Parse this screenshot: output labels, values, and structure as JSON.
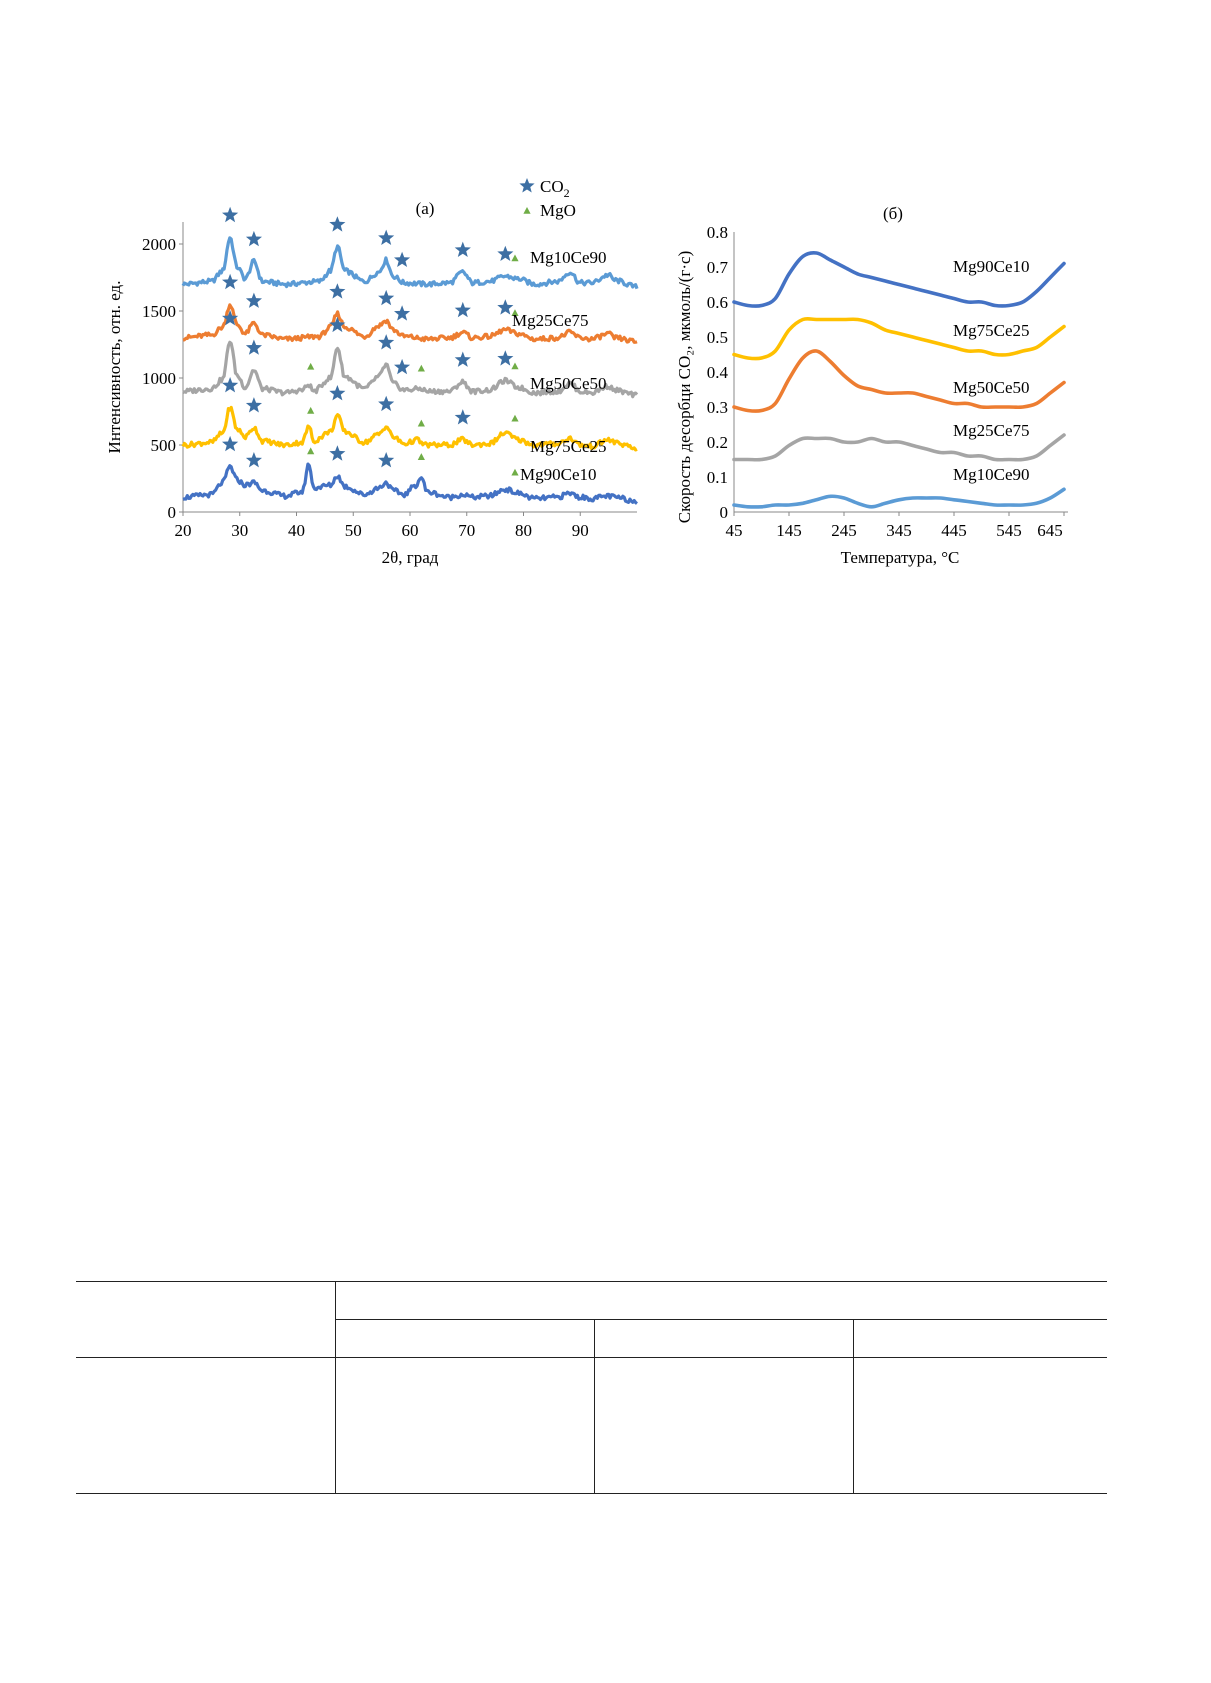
{
  "chart_data": [
    {
      "panel_label": "(a)",
      "type": "line",
      "xlabel": "2θ, град",
      "ylabel": "Интенсивность, отн. ед.",
      "xlim": [
        20,
        100
      ],
      "ylim": [
        0,
        2200
      ],
      "xticks": [
        "20",
        "30",
        "40",
        "50",
        "60",
        "70",
        "80",
        "90"
      ],
      "yticks": [
        "0",
        "500",
        "1000",
        "1500",
        "2000"
      ],
      "grid": false,
      "legend": {
        "position": "top-right",
        "entries": [
          {
            "symbol": "star",
            "label": "CO",
            "subscript": "2"
          },
          {
            "symbol": "triangle",
            "label": "MgO"
          }
        ]
      },
      "series": [
        {
          "name": "Mg10Ce90",
          "color": "#5b9bd5",
          "baseline": 1700,
          "x": [
            20,
            25,
            27,
            28.3,
            29.5,
            31,
            32.5,
            34,
            38,
            44,
            46,
            47.2,
            48.5,
            52,
            54.5,
            55.8,
            57,
            59,
            63,
            67,
            69.3,
            71,
            74,
            76.8,
            79,
            82,
            86,
            88.2,
            90,
            92,
            95,
            96,
            100
          ],
          "y": [
            1700,
            1720,
            1800,
            2050,
            1830,
            1740,
            1870,
            1720,
            1700,
            1720,
            1800,
            1980,
            1800,
            1720,
            1790,
            1880,
            1760,
            1710,
            1700,
            1710,
            1790,
            1710,
            1720,
            1760,
            1740,
            1700,
            1720,
            1790,
            1710,
            1710,
            1770,
            1730,
            1680
          ]
        },
        {
          "name": "Mg25Ce75",
          "color": "#ed7d31",
          "baseline": 1300,
          "x": [
            20,
            25,
            27,
            28.3,
            29.5,
            31,
            32.5,
            34,
            38,
            44,
            46,
            47.2,
            48.5,
            52,
            54.5,
            55.8,
            57,
            59,
            63,
            67,
            69.3,
            71,
            74,
            76.8,
            79,
            82,
            86,
            88.2,
            90,
            92,
            95,
            96,
            100
          ],
          "y": [
            1300,
            1320,
            1380,
            1550,
            1400,
            1330,
            1410,
            1320,
            1290,
            1310,
            1380,
            1480,
            1380,
            1310,
            1390,
            1430,
            1360,
            1310,
            1290,
            1300,
            1340,
            1300,
            1310,
            1360,
            1330,
            1290,
            1300,
            1340,
            1300,
            1290,
            1330,
            1300,
            1270
          ]
        },
        {
          "name": "Mg50Ce50",
          "color": "#a5a5a5",
          "baseline": 900,
          "x": [
            20,
            25,
            27,
            28.3,
            29.5,
            31,
            32.5,
            34,
            38,
            41,
            42.2,
            43,
            46,
            47.2,
            48.5,
            52,
            54.5,
            55.8,
            57,
            59,
            62,
            63,
            67,
            69.3,
            71,
            74,
            76.8,
            79,
            82,
            86,
            88.2,
            90,
            92,
            95,
            96,
            100
          ],
          "y": [
            900,
            920,
            990,
            1280,
            1020,
            930,
            1060,
            920,
            890,
            910,
            950,
            900,
            1000,
            1230,
            1010,
            920,
            1010,
            1100,
            960,
            910,
            920,
            900,
            900,
            970,
            900,
            910,
            980,
            930,
            890,
            900,
            960,
            900,
            890,
            940,
            910,
            870
          ]
        },
        {
          "name": "Mg75Ce25",
          "color": "#ffc000",
          "baseline": 500,
          "x": [
            20,
            25,
            27,
            28.3,
            29.5,
            31,
            32.5,
            34,
            38,
            41,
            42.2,
            43,
            46,
            47.2,
            48.5,
            52,
            54.5,
            55.8,
            57,
            59,
            61.5,
            62,
            63,
            67,
            69.3,
            71,
            74,
            76.8,
            79,
            82,
            86,
            88.2,
            90,
            92,
            95,
            96,
            100
          ],
          "y": [
            500,
            520,
            590,
            780,
            620,
            560,
            630,
            530,
            500,
            520,
            640,
            530,
            600,
            720,
            600,
            520,
            580,
            640,
            560,
            510,
            540,
            510,
            500,
            500,
            540,
            500,
            510,
            590,
            540,
            500,
            510,
            550,
            500,
            490,
            540,
            520,
            470
          ]
        },
        {
          "name": "Mg90Ce10",
          "color": "#4472c4",
          "baseline": 100,
          "x": [
            20,
            25,
            27,
            28.3,
            29.5,
            31,
            32.5,
            34,
            38,
            41,
            42.2,
            43,
            46,
            47.2,
            48.5,
            52,
            54.5,
            55.8,
            57,
            59,
            61,
            62,
            63,
            67,
            69.3,
            71,
            74,
            76.8,
            79,
            82,
            86,
            88.2,
            90,
            92,
            95,
            96,
            100
          ],
          "y": [
            110,
            130,
            220,
            340,
            240,
            200,
            220,
            160,
            120,
            150,
            360,
            180,
            200,
            270,
            190,
            130,
            180,
            220,
            160,
            130,
            200,
            260,
            150,
            110,
            130,
            110,
            120,
            170,
            140,
            100,
            110,
            140,
            110,
            100,
            120,
            110,
            80
          ]
        }
      ],
      "markers": {
        "star_positions_per_series": {
          "Mg10Ce90": [
            28.3,
            32.5,
            47.2,
            55.8,
            58.6,
            69.3,
            76.8
          ],
          "Mg25Ce75": [
            28.3,
            32.5,
            47.2,
            55.8,
            58.6,
            69.3,
            76.8
          ],
          "Mg50Ce50": [
            28.3,
            32.5,
            47.2,
            55.8,
            58.6,
            69.3,
            76.8
          ],
          "Mg75Ce25": [
            28.3,
            32.5,
            47.2,
            55.8,
            69.3
          ],
          "Mg90Ce10": [
            28.3,
            32.5,
            47.2,
            55.8
          ]
        },
        "triangle_positions_per_series": {
          "Mg10Ce90": [
            78.5
          ],
          "Mg25Ce75": [
            78.5
          ],
          "Mg50Ce50": [
            42.5,
            62.0,
            78.5
          ],
          "Mg75Ce25": [
            42.5,
            62.0,
            78.5
          ],
          "Mg90Ce10": [
            42.5,
            62.0,
            78.5
          ]
        }
      }
    },
    {
      "panel_label": "(б)",
      "type": "line",
      "xlabel": "Температура, °C",
      "ylabel": "Скорость десорбци CO₂, мкмоль/(г·с)",
      "xlim": [
        45,
        645
      ],
      "ylim": [
        0,
        0.8
      ],
      "xticks": [
        "45",
        "145",
        "245",
        "345",
        "445",
        "545",
        "645"
      ],
      "yticks": [
        "0",
        "0.1",
        "0.2",
        "0.3",
        "0.4",
        "0.5",
        "0.6",
        "0.7",
        "0.8"
      ],
      "grid": false,
      "series": [
        {
          "name": "Mg90Ce10",
          "color": "#4472c4",
          "x": [
            45,
            70,
            95,
            120,
            145,
            170,
            195,
            220,
            245,
            270,
            295,
            320,
            345,
            370,
            395,
            420,
            445,
            470,
            495,
            520,
            545,
            570,
            595,
            620,
            645
          ],
          "y": [
            0.6,
            0.59,
            0.59,
            0.61,
            0.68,
            0.73,
            0.74,
            0.72,
            0.7,
            0.68,
            0.67,
            0.66,
            0.65,
            0.64,
            0.63,
            0.62,
            0.61,
            0.6,
            0.6,
            0.59,
            0.59,
            0.6,
            0.63,
            0.67,
            0.71
          ]
        },
        {
          "name": "Mg75Ce25",
          "color": "#ffc000",
          "x": [
            45,
            70,
            95,
            120,
            145,
            170,
            195,
            220,
            245,
            270,
            295,
            320,
            345,
            370,
            395,
            420,
            445,
            470,
            495,
            520,
            545,
            570,
            595,
            620,
            645
          ],
          "y": [
            0.45,
            0.44,
            0.44,
            0.46,
            0.52,
            0.55,
            0.55,
            0.55,
            0.55,
            0.55,
            0.54,
            0.52,
            0.51,
            0.5,
            0.49,
            0.48,
            0.47,
            0.46,
            0.46,
            0.45,
            0.45,
            0.46,
            0.47,
            0.5,
            0.53
          ]
        },
        {
          "name": "Mg50Ce50",
          "color": "#ed7d31",
          "x": [
            45,
            70,
            95,
            120,
            145,
            170,
            195,
            220,
            245,
            270,
            295,
            320,
            345,
            370,
            395,
            420,
            445,
            470,
            495,
            520,
            545,
            570,
            595,
            620,
            645
          ],
          "y": [
            0.3,
            0.29,
            0.29,
            0.31,
            0.38,
            0.44,
            0.46,
            0.43,
            0.39,
            0.36,
            0.35,
            0.34,
            0.34,
            0.34,
            0.33,
            0.32,
            0.31,
            0.31,
            0.3,
            0.3,
            0.3,
            0.3,
            0.31,
            0.34,
            0.37
          ]
        },
        {
          "name": "Mg25Ce75",
          "color": "#a5a5a5",
          "x": [
            45,
            70,
            95,
            120,
            145,
            170,
            195,
            220,
            245,
            270,
            295,
            320,
            345,
            370,
            395,
            420,
            445,
            470,
            495,
            520,
            545,
            570,
            595,
            620,
            645
          ],
          "y": [
            0.15,
            0.15,
            0.15,
            0.16,
            0.19,
            0.21,
            0.21,
            0.21,
            0.2,
            0.2,
            0.21,
            0.2,
            0.2,
            0.19,
            0.18,
            0.17,
            0.17,
            0.16,
            0.16,
            0.15,
            0.15,
            0.15,
            0.16,
            0.19,
            0.22
          ]
        },
        {
          "name": "Mg10Ce90",
          "color": "#5b9bd5",
          "x": [
            45,
            70,
            95,
            120,
            145,
            170,
            195,
            220,
            245,
            270,
            295,
            320,
            345,
            370,
            395,
            420,
            445,
            470,
            495,
            520,
            545,
            570,
            595,
            620,
            645
          ],
          "y": [
            0.02,
            0.015,
            0.015,
            0.02,
            0.02,
            0.025,
            0.035,
            0.045,
            0.04,
            0.025,
            0.015,
            0.025,
            0.035,
            0.04,
            0.04,
            0.04,
            0.035,
            0.03,
            0.025,
            0.02,
            0.02,
            0.02,
            0.025,
            0.04,
            0.065
          ]
        }
      ]
    }
  ]
}
